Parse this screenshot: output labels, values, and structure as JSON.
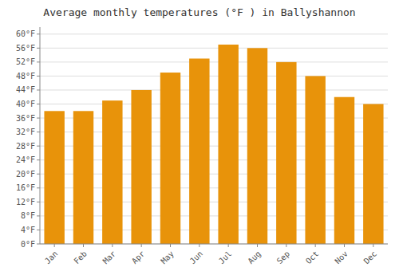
{
  "chart_data": {
    "type": "bar",
    "title": "Average monthly temperatures (°F ) in Ballyshannon",
    "categories": [
      "Jan",
      "Feb",
      "Mar",
      "Apr",
      "May",
      "Jun",
      "Jul",
      "Aug",
      "Sep",
      "Oct",
      "Nov",
      "Dec"
    ],
    "values": [
      38,
      38,
      41,
      44,
      49,
      53,
      57,
      56,
      52,
      48,
      42,
      40
    ],
    "color": "#E8930A",
    "ylim": [
      0,
      62
    ],
    "yticks": [
      {
        "value": 0,
        "label": "0°F"
      },
      {
        "value": 4,
        "label": "4°F"
      },
      {
        "value": 8,
        "label": "8°F"
      },
      {
        "value": 12,
        "label": "12°F"
      },
      {
        "value": 16,
        "label": "16°F"
      },
      {
        "value": 20,
        "label": "20°F"
      },
      {
        "value": 24,
        "label": "24°F"
      },
      {
        "value": 28,
        "label": "28°F"
      },
      {
        "value": 32,
        "label": "32°F"
      },
      {
        "value": 36,
        "label": "36°F"
      },
      {
        "value": 40,
        "label": "40°F"
      },
      {
        "value": 44,
        "label": "44°F"
      },
      {
        "value": 48,
        "label": "48°F"
      },
      {
        "value": 52,
        "label": "52°F"
      },
      {
        "value": 56,
        "label": "56°F"
      },
      {
        "value": 60,
        "label": "60°F"
      }
    ],
    "grid": true
  }
}
